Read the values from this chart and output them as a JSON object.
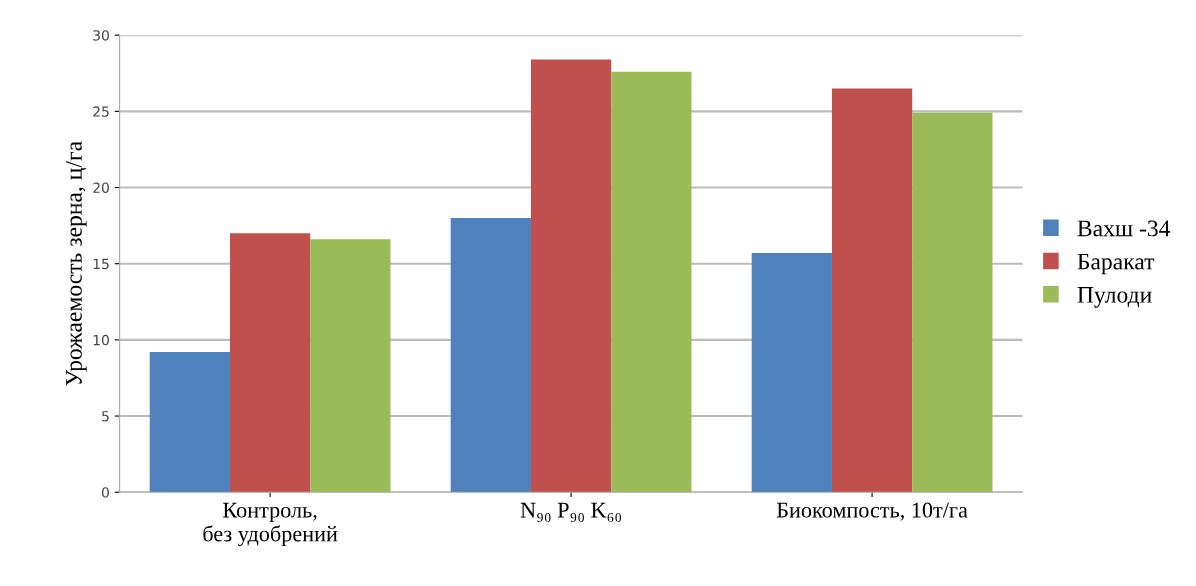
{
  "chart_data": {
    "type": "bar",
    "ylabel": "Урожаемость зерна, ц/га",
    "categories": [
      "Контроль,\nбез удобрений",
      "N₉₀ P₉₀ K₆₀",
      "Биокомпость, 10т/га"
    ],
    "series": [
      {
        "name": "Вахш -34",
        "color": "#4f81bd",
        "values": [
          9.2,
          18.0,
          15.7
        ]
      },
      {
        "name": "Баракат",
        "color": "#c0504d",
        "values": [
          17.0,
          28.4,
          26.5
        ]
      },
      {
        "name": "Пулоди",
        "color": "#9bbb59",
        "values": [
          16.6,
          27.6,
          24.9
        ]
      }
    ],
    "ylim": [
      0,
      30
    ],
    "yticks": [
      0,
      5,
      10,
      15,
      20,
      25,
      30
    ],
    "grid": "y",
    "legend": "right"
  }
}
